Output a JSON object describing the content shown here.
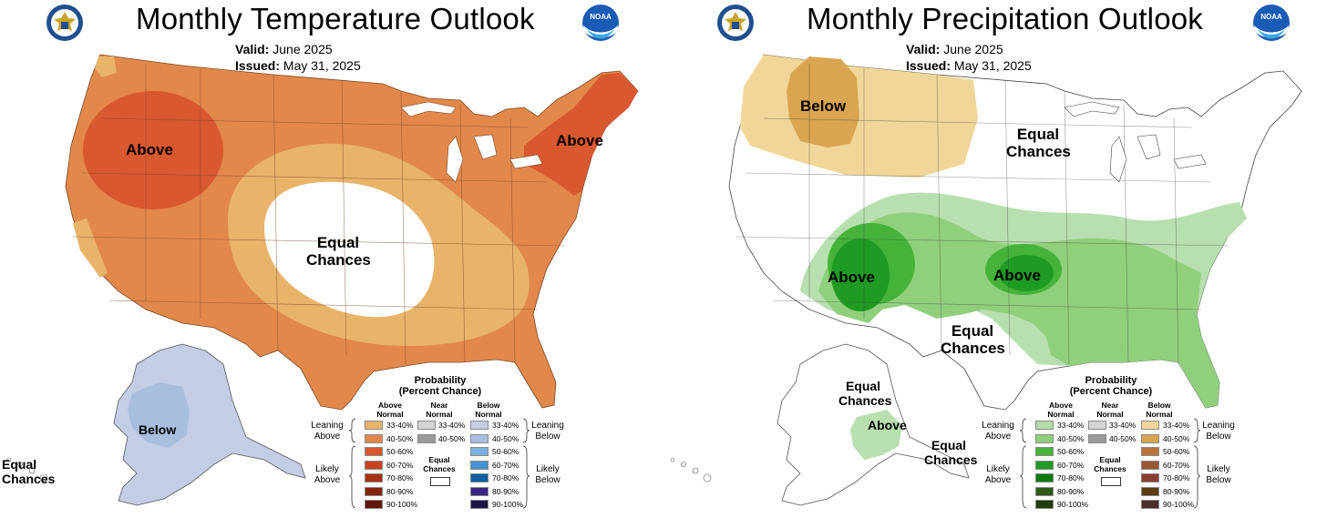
{
  "temperature": {
    "title": "Monthly Temperature Outlook",
    "valid_label": "Valid:",
    "valid_value": "June 2025",
    "issued_label": "Issued:",
    "issued_value": "May 31, 2025",
    "labels": {
      "above_west": "Above",
      "above_northeast": "Above",
      "equal_center_1": "Equal",
      "equal_center_2": "Chances",
      "below_alaska": "Below",
      "equal_hawaii_1": "Equal",
      "equal_hawaii_2": "Chances"
    },
    "legend": {
      "title_1": "Probability",
      "title_2": "(Percent Chance)",
      "head_above_1": "Above",
      "head_above_2": "Normal",
      "head_near_1": "Near",
      "head_near_2": "Normal",
      "head_below_1": "Below",
      "head_below_2": "Normal",
      "leaning_above_1": "Leaning",
      "leaning_above_2": "Above",
      "likely_above_1": "Likely",
      "likely_above_2": "Above",
      "leaning_below_1": "Leaning",
      "leaning_below_2": "Below",
      "likely_below_1": "Likely",
      "likely_below_2": "Below",
      "equal_1": "Equal",
      "equal_2": "Chances",
      "pcts": [
        "33-40%",
        "40-50%",
        "50-60%",
        "60-70%",
        "70-80%",
        "80-90%",
        "90-100%"
      ],
      "near_pcts": [
        "33-40%",
        "40-50%"
      ],
      "above_colors": [
        "#e8b46a",
        "#e2884a",
        "#d9582f",
        "#c8421f",
        "#a83113",
        "#85240c",
        "#601706"
      ],
      "near_colors": [
        "#d4d4d4",
        "#9a9a9a"
      ],
      "below_colors": [
        "#c4cde6",
        "#a8bede",
        "#7cb1e0",
        "#4591d2",
        "#0b5fa3",
        "#3a2583",
        "#1f1446"
      ]
    },
    "colors": {
      "c33_40": "#e8b46a",
      "c40_50": "#e2884a",
      "c50_60": "#d9582f",
      "below_33_40": "#c4cde6",
      "below_40_50": "#a8bede"
    }
  },
  "precipitation": {
    "title": "Monthly Precipitation Outlook",
    "valid_label": "Valid:",
    "valid_value": "June 2025",
    "issued_label": "Issued:",
    "issued_value": "May 31, 2025",
    "labels": {
      "below_north": "Below",
      "equal_north_1": "Equal",
      "equal_north_2": "Chances",
      "above_southwest": "Above",
      "above_south": "Above",
      "equal_south_1": "Equal",
      "equal_south_2": "Chances",
      "equal_alaska_1": "Equal",
      "equal_alaska_2": "Chances",
      "above_alaska": "Above",
      "equal_alaska_se_1": "Equal",
      "equal_alaska_se_2": "Chances"
    },
    "legend": {
      "title_1": "Probability",
      "title_2": "(Percent Chance)",
      "head_above_1": "Above",
      "head_above_2": "Normal",
      "head_near_1": "Near",
      "head_near_2": "Normal",
      "head_below_1": "Below",
      "head_below_2": "Normal",
      "leaning_above_1": "Leaning",
      "leaning_above_2": "Above",
      "likely_above_1": "Likely",
      "likely_above_2": "Above",
      "leaning_below_1": "Leaning",
      "leaning_below_2": "Below",
      "likely_below_1": "Likely",
      "likely_below_2": "Below",
      "equal_1": "Equal",
      "equal_2": "Chances",
      "pcts": [
        "33-40%",
        "40-50%",
        "50-60%",
        "60-70%",
        "70-80%",
        "80-90%",
        "90-100%"
      ],
      "near_pcts": [
        "33-40%",
        "40-50%"
      ],
      "above_colors": [
        "#b3dcaa",
        "#8fcf7a",
        "#45b33a",
        "#1f9a22",
        "#0b7a10",
        "#2f5a16",
        "#1f3d0d"
      ],
      "near_colors": [
        "#d4d4d4",
        "#9a9a9a"
      ],
      "below_colors": [
        "#f0d698",
        "#d9a550",
        "#b8733a",
        "#9b5634",
        "#8a3e33",
        "#5e3b12",
        "#4a2e2b"
      ]
    },
    "colors": {
      "c33_40": "#b8dfb0",
      "c40_50": "#90cf7c",
      "c50_60": "#45b33a",
      "c60_70": "#1f9a22",
      "below_33_40": "#f0d698",
      "below_40_50": "#d9a550"
    }
  },
  "icons": [
    "doc-seal-icon",
    "noaa-logo-icon"
  ],
  "noaa_text": "NOAA"
}
